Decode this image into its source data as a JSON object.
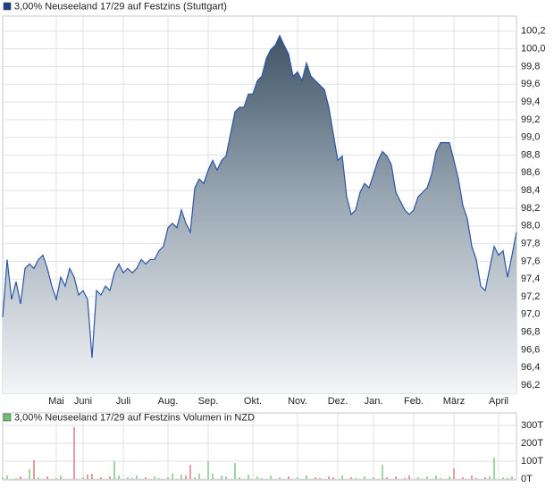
{
  "chart_data": [
    {
      "type": "area",
      "categories": [
        null,
        null,
        null,
        null,
        null,
        null,
        null,
        null,
        null,
        null,
        null,
        null,
        "Mai",
        null,
        null,
        null,
        null,
        null,
        "Juni",
        null,
        null,
        null,
        null,
        null,
        null,
        null,
        null,
        "Juli",
        null,
        null,
        null,
        null,
        null,
        null,
        null,
        null,
        null,
        "Aug.",
        null,
        null,
        null,
        null,
        null,
        null,
        null,
        null,
        "Sep.",
        null,
        null,
        null,
        null,
        null,
        null,
        null,
        null,
        null,
        "Okt.",
        null,
        null,
        null,
        null,
        null,
        null,
        null,
        null,
        null,
        "Nov.",
        null,
        null,
        null,
        null,
        null,
        null,
        null,
        null,
        "Dez.",
        null,
        null,
        null,
        null,
        null,
        null,
        null,
        "Jan.",
        null,
        null,
        null,
        null,
        null,
        null,
        null,
        null,
        "Feb.",
        null,
        null,
        null,
        null,
        null,
        null,
        null,
        null,
        "März",
        null,
        null,
        null,
        null,
        null,
        null,
        null,
        null,
        null,
        "April",
        null,
        null,
        null,
        null
      ],
      "series": [
        {
          "name": "3,00% Neuseeland 17/29 auf Festzins (Stuttgart)",
          "color": "#2a55a8",
          "values": [
            96.97,
            97.62,
            97.17,
            97.37,
            97.12,
            97.52,
            97.57,
            97.52,
            97.62,
            97.67,
            97.52,
            97.32,
            97.17,
            97.42,
            97.32,
            97.52,
            97.42,
            97.22,
            97.27,
            97.17,
            96.51,
            97.27,
            97.22,
            97.32,
            97.27,
            97.47,
            97.57,
            97.47,
            97.52,
            97.47,
            97.52,
            97.62,
            97.57,
            97.62,
            97.62,
            97.72,
            97.77,
            97.98,
            98.03,
            97.98,
            98.18,
            98.03,
            97.93,
            98.43,
            98.53,
            98.48,
            98.63,
            98.74,
            98.63,
            98.74,
            98.79,
            99.04,
            99.29,
            99.34,
            99.34,
            99.49,
            99.49,
            99.64,
            99.69,
            99.89,
            99.99,
            100.04,
            100.15,
            100.04,
            99.94,
            99.69,
            99.74,
            99.64,
            99.84,
            99.69,
            99.64,
            99.59,
            99.54,
            99.34,
            99.04,
            98.74,
            98.79,
            98.33,
            98.13,
            98.18,
            98.38,
            98.48,
            98.43,
            98.58,
            98.74,
            98.84,
            98.79,
            98.69,
            98.38,
            98.28,
            98.18,
            98.13,
            98.18,
            98.33,
            98.38,
            98.43,
            98.58,
            98.84,
            98.94,
            98.94,
            98.94,
            98.74,
            98.53,
            98.23,
            98.08,
            97.77,
            97.62,
            97.32,
            97.27,
            97.52,
            97.77,
            97.67,
            97.72,
            97.42,
            97.67,
            97.93
          ]
        }
      ],
      "ylim": [
        96.11,
        100.37
      ],
      "yticks": [
        {
          "value": 96.2,
          "label": "96,2"
        },
        {
          "value": 96.4,
          "label": "96,4"
        },
        {
          "value": 96.6,
          "label": "96,6"
        },
        {
          "value": 96.8,
          "label": "96,8"
        },
        {
          "value": 97.0,
          "label": "97,0"
        },
        {
          "value": 97.2,
          "label": "97,2"
        },
        {
          "value": 97.4,
          "label": "97,4"
        },
        {
          "value": 97.6,
          "label": "97,6"
        },
        {
          "value": 97.8,
          "label": "97,8"
        },
        {
          "value": 98.0,
          "label": "98,0"
        },
        {
          "value": 98.2,
          "label": "98,2"
        },
        {
          "value": 98.4,
          "label": "98,4"
        },
        {
          "value": 98.6,
          "label": "98,6"
        },
        {
          "value": 98.8,
          "label": "98,8"
        },
        {
          "value": 99.0,
          "label": "99,0"
        },
        {
          "value": 99.2,
          "label": "99,2"
        },
        {
          "value": 99.4,
          "label": "99,4"
        },
        {
          "value": 99.6,
          "label": "99,6"
        },
        {
          "value": 99.8,
          "label": "99,8"
        },
        {
          "value": 100.0,
          "label": "100,0"
        },
        {
          "value": 100.2,
          "label": "100,2"
        }
      ],
      "grid": true
    },
    {
      "type": "bar",
      "series": [
        {
          "name": "3,00% Neuseeland 17/29 auf Festzins Volumen in NZD",
          "color": "#6fbf6f",
          "values": [
            10,
            20,
            0,
            5,
            15,
            0,
            55,
            105,
            10,
            0,
            15,
            0,
            5,
            20,
            0,
            0,
            290,
            0,
            10,
            25,
            30,
            0,
            10,
            0,
            15,
            100,
            20,
            0,
            10,
            5,
            20,
            0,
            10,
            0,
            15,
            5,
            0,
            10,
            30,
            0,
            25,
            20,
            80,
            10,
            30,
            0,
            100,
            30,
            0,
            20,
            15,
            0,
            90,
            10,
            0,
            25,
            0,
            15,
            5,
            0,
            20,
            0,
            10,
            0,
            15,
            0,
            10,
            0,
            20,
            0,
            10,
            5,
            0,
            15,
            10,
            0,
            20,
            0,
            10,
            5,
            0,
            15,
            0,
            10,
            0,
            80,
            10,
            0,
            15,
            0,
            5,
            20,
            0,
            10,
            0,
            15,
            0,
            20,
            5,
            0,
            15,
            60,
            0,
            10,
            0,
            20,
            5,
            0,
            10,
            15,
            120,
            0,
            10,
            5,
            15,
            0
          ]
        }
      ],
      "up_color": "#3cb043",
      "down_color": "#d23c3c",
      "ylim": [
        -5,
        370
      ],
      "yticks": [
        {
          "value": 0,
          "label": "0T"
        },
        {
          "value": 100,
          "label": "100T"
        },
        {
          "value": 200,
          "label": "200T"
        },
        {
          "value": 300,
          "label": "300T"
        }
      ],
      "grid": true
    }
  ]
}
